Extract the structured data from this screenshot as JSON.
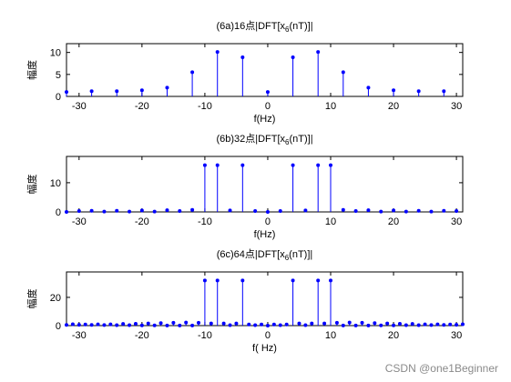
{
  "watermark": "CSDN @one1Beginner",
  "style": {
    "stem_color": "#0000ff",
    "axes_color": "#000000",
    "background": "#ffffff"
  },
  "chart_data": [
    {
      "type": "stem",
      "title_prefix": "(6a)16点|DFT[x",
      "title_sub": "6",
      "title_suffix": "(nT)]|",
      "xlabel": "f(Hz)",
      "ylabel": "幅度",
      "xlim": [
        -32,
        31
      ],
      "ylim": [
        0,
        12
      ],
      "xticks": [
        -30,
        -20,
        -10,
        0,
        10,
        20,
        30
      ],
      "yticks": [
        0,
        5,
        10
      ],
      "grid": false,
      "x": [
        -32,
        -28,
        -24,
        -20,
        -16,
        -12,
        -8,
        -4,
        0,
        4,
        8,
        12,
        16,
        20,
        24,
        28
      ],
      "y": [
        1.0,
        1.2,
        1.2,
        1.4,
        2.0,
        5.5,
        10.1,
        8.9,
        1.0,
        8.9,
        10.1,
        5.5,
        2.0,
        1.4,
        1.2,
        1.2
      ]
    },
    {
      "type": "stem",
      "title_prefix": "(6b)32点|DFT[x",
      "title_sub": "6",
      "title_suffix": "(nT)]|",
      "xlabel": "f(Hz)",
      "ylabel": "幅度",
      "xlim": [
        -32,
        31
      ],
      "ylim": [
        0,
        19
      ],
      "xticks": [
        -30,
        -20,
        -10,
        0,
        10,
        20,
        30
      ],
      "yticks": [
        0,
        10
      ],
      "grid": false,
      "x": [
        -32,
        -30,
        -28,
        -26,
        -24,
        -22,
        -20,
        -18,
        -16,
        -14,
        -12,
        -10,
        -8,
        -6,
        -4,
        -2,
        0,
        2,
        4,
        6,
        8,
        10,
        12,
        14,
        16,
        18,
        20,
        22,
        24,
        26,
        28,
        30
      ],
      "y": [
        0,
        0.3,
        0.4,
        0.1,
        0.4,
        0.1,
        0.5,
        0.1,
        0.6,
        0.3,
        0.7,
        16,
        16,
        0.5,
        16,
        0.3,
        0,
        0.3,
        16,
        0.5,
        16,
        16,
        0.7,
        0.3,
        0.6,
        0.1,
        0.5,
        0.1,
        0.4,
        0.1,
        0.4,
        0.3
      ]
    },
    {
      "type": "stem",
      "title_prefix": "(6c)64点|DFT[x",
      "title_sub": "6",
      "title_suffix": "(nT)]|",
      "xlabel": "f( Hz)",
      "ylabel": "幅度",
      "xlim": [
        -32,
        31
      ],
      "ylim": [
        0,
        38
      ],
      "xticks": [
        -30,
        -20,
        -10,
        0,
        10,
        20,
        30
      ],
      "yticks": [
        0,
        20
      ],
      "grid": false,
      "x": [
        -32,
        -31,
        -30,
        -29,
        -28,
        -27,
        -26,
        -25,
        -24,
        -23,
        -22,
        -21,
        -20,
        -19,
        -18,
        -17,
        -16,
        -15,
        -14,
        -13,
        -12,
        -11,
        -10,
        -9,
        -8,
        -7,
        -6,
        -5,
        -4,
        -3,
        -2,
        -1,
        0,
        1,
        2,
        3,
        4,
        5,
        6,
        7,
        8,
        9,
        10,
        11,
        12,
        13,
        14,
        15,
        16,
        17,
        18,
        19,
        20,
        21,
        22,
        23,
        24,
        25,
        26,
        27,
        28,
        29,
        30,
        31
      ],
      "y": [
        0.5,
        1.0,
        0.6,
        0.8,
        0.5,
        0.9,
        0.4,
        0.9,
        0.3,
        1.2,
        0.3,
        1.3,
        0.2,
        1.5,
        0.2,
        1.8,
        0.1,
        2.0,
        0.1,
        2.2,
        0.1,
        2.0,
        32,
        1.5,
        32,
        1.5,
        0.3,
        1.5,
        32,
        0.8,
        0.3,
        0.8,
        0,
        0.8,
        0.3,
        0.8,
        32,
        1.5,
        0.3,
        1.5,
        32,
        1.5,
        32,
        2.0,
        0.1,
        2.2,
        0.1,
        2.0,
        0.1,
        1.8,
        0.2,
        1.5,
        0.2,
        1.3,
        0.3,
        1.2,
        0.3,
        0.9,
        0.4,
        0.9,
        0.5,
        0.8,
        0.6,
        1.0
      ]
    }
  ]
}
